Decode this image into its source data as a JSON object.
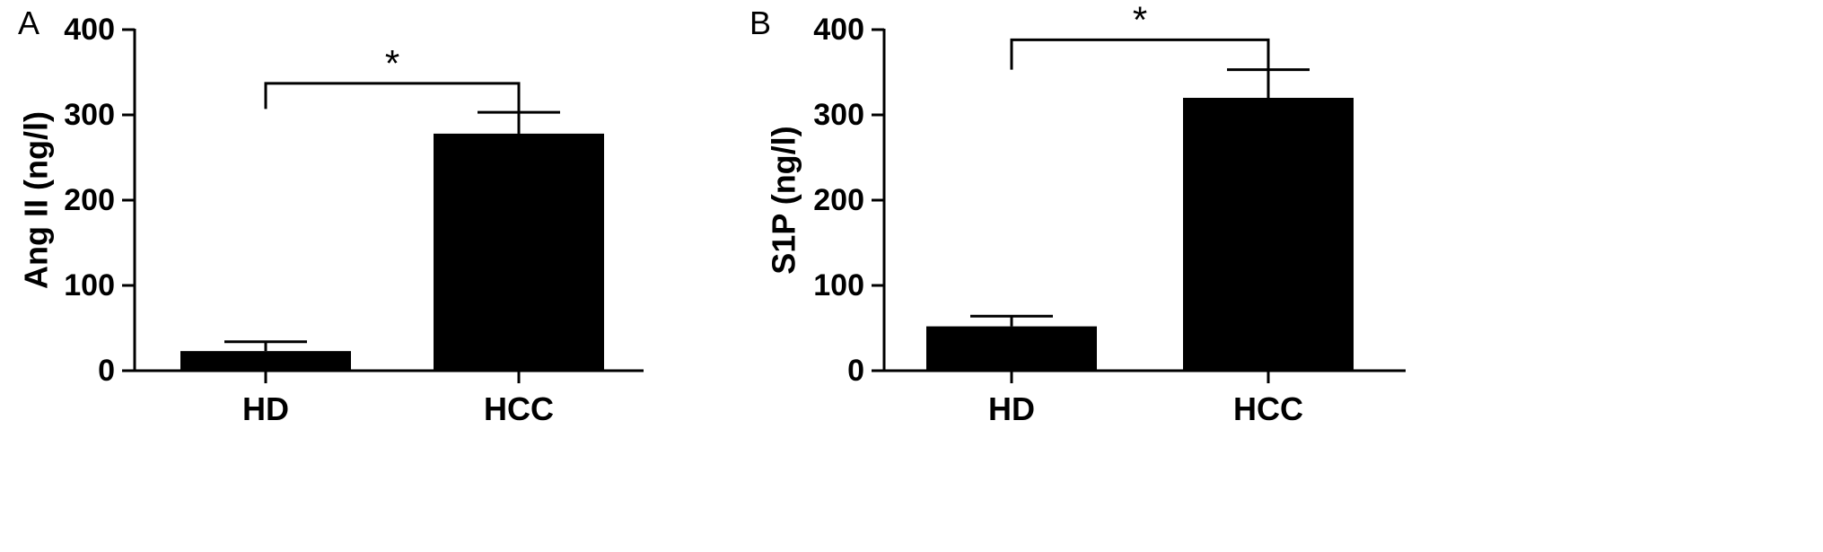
{
  "chart_data": [
    {
      "type": "bar",
      "panel_label": "A",
      "categories": [
        "HD",
        "HCC"
      ],
      "values": [
        23,
        278
      ],
      "errors": [
        11,
        25
      ],
      "ylabel": "Ang II (ng/l)",
      "ylim": [
        0,
        400
      ],
      "yticks": [
        0,
        100,
        200,
        300,
        400
      ],
      "significance": {
        "label": "*",
        "from": 0,
        "to": 1,
        "y": 337,
        "left_tick_end": 307,
        "right_tick_end": 278
      },
      "grid": false,
      "bar_color": "#000000"
    },
    {
      "type": "bar",
      "panel_label": "B",
      "categories": [
        "HD",
        "HCC"
      ],
      "values": [
        52,
        320
      ],
      "errors": [
        12,
        33
      ],
      "ylabel": "S1P (ng/l)",
      "ylim": [
        0,
        400
      ],
      "yticks": [
        0,
        100,
        200,
        300,
        400
      ],
      "significance": {
        "label": "*",
        "from": 0,
        "to": 1,
        "y": 388,
        "left_tick_end": 353,
        "right_tick_end": 320
      },
      "grid": false,
      "bar_color": "#000000"
    }
  ]
}
